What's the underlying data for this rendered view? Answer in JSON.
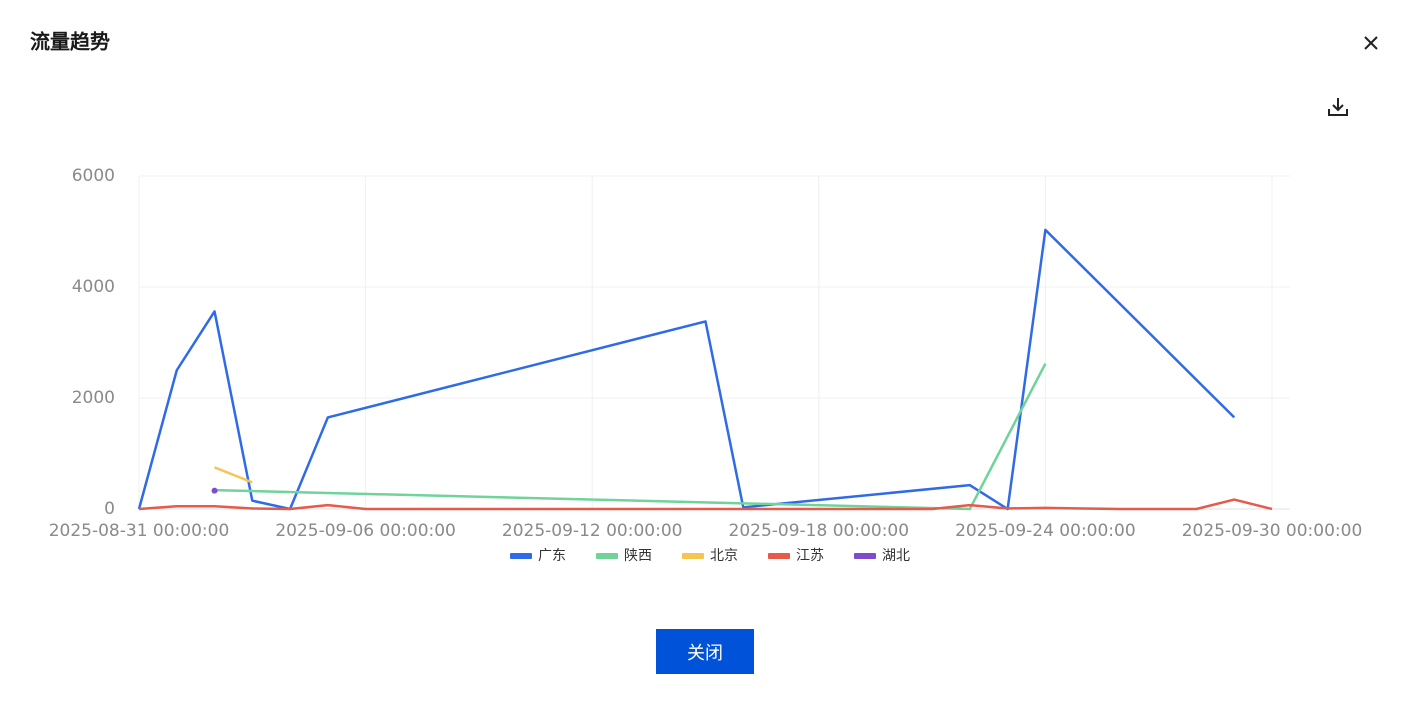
{
  "dialog": {
    "title": "流量趋势",
    "close_button": "关闭"
  },
  "chart_data": {
    "type": "line",
    "xlim": [
      "2025-08-31 00:00:00",
      "2025-09-30 00:00:00"
    ],
    "xticks": [
      "2025-08-31 00:00:00",
      "2025-09-06 00:00:00",
      "2025-09-12 00:00:00",
      "2025-09-18 00:00:00",
      "2025-09-24 00:00:00",
      "2025-09-30 00:00:00"
    ],
    "ylim": [
      0,
      6000
    ],
    "yticks": [
      0,
      2000,
      4000,
      6000
    ],
    "grid": true,
    "legend": "bottom",
    "series": [
      {
        "name": "广东",
        "color": "#2f6be6",
        "x": [
          "2025-08-31 00:00:00",
          "2025-09-01 00:00:00",
          "2025-09-02 00:00:00",
          "2025-09-03 00:00:00",
          "2025-09-04 00:00:00",
          "2025-09-05 00:00:00",
          "2025-09-15 00:00:00",
          "2025-09-16 00:00:00",
          "2025-09-22 00:00:00",
          "2025-09-23 00:00:00",
          "2025-09-24 00:00:00",
          "2025-09-29 00:00:00"
        ],
        "values": [
          0,
          2500,
          3560,
          150,
          0,
          1650,
          3380,
          30,
          430,
          0,
          5030,
          1650
        ]
      },
      {
        "name": "陕西",
        "color": "#6fd39a",
        "x": [
          "2025-09-02 00:00:00",
          "2025-09-22 00:00:00",
          "2025-09-24 00:00:00"
        ],
        "values": [
          340,
          0,
          2620
        ]
      },
      {
        "name": "北京",
        "color": "#f5c451",
        "x": [
          "2025-09-02 00:00:00",
          "2025-09-03 00:00:00"
        ],
        "values": [
          750,
          480
        ]
      },
      {
        "name": "江苏",
        "color": "#e65a4b",
        "x": [
          "2025-08-31 00:00:00",
          "2025-09-01 00:00:00",
          "2025-09-02 00:00:00",
          "2025-09-03 00:00:00",
          "2025-09-04 00:00:00",
          "2025-09-05 00:00:00",
          "2025-09-06 00:00:00",
          "2025-09-07 00:00:00",
          "2025-09-08 00:00:00",
          "2025-09-09 00:00:00",
          "2025-09-10 00:00:00",
          "2025-09-11 00:00:00",
          "2025-09-12 00:00:00",
          "2025-09-13 00:00:00",
          "2025-09-14 00:00:00",
          "2025-09-15 00:00:00",
          "2025-09-16 00:00:00",
          "2025-09-17 00:00:00",
          "2025-09-18 00:00:00",
          "2025-09-19 00:00:00",
          "2025-09-20 00:00:00",
          "2025-09-21 00:00:00",
          "2025-09-22 00:00:00",
          "2025-09-23 00:00:00",
          "2025-09-24 00:00:00",
          "2025-09-25 00:00:00",
          "2025-09-26 00:00:00",
          "2025-09-27 00:00:00",
          "2025-09-28 00:00:00",
          "2025-09-29 00:00:00",
          "2025-09-30 00:00:00"
        ],
        "values": [
          0,
          50,
          50,
          10,
          0,
          70,
          0,
          0,
          0,
          0,
          0,
          0,
          0,
          0,
          0,
          0,
          0,
          0,
          0,
          0,
          0,
          0,
          70,
          10,
          20,
          10,
          0,
          0,
          0,
          170,
          0
        ]
      },
      {
        "name": "湖北",
        "color": "#7f4ccc",
        "x": [
          "2025-09-02 00:00:00"
        ],
        "values": [
          330
        ]
      }
    ]
  }
}
